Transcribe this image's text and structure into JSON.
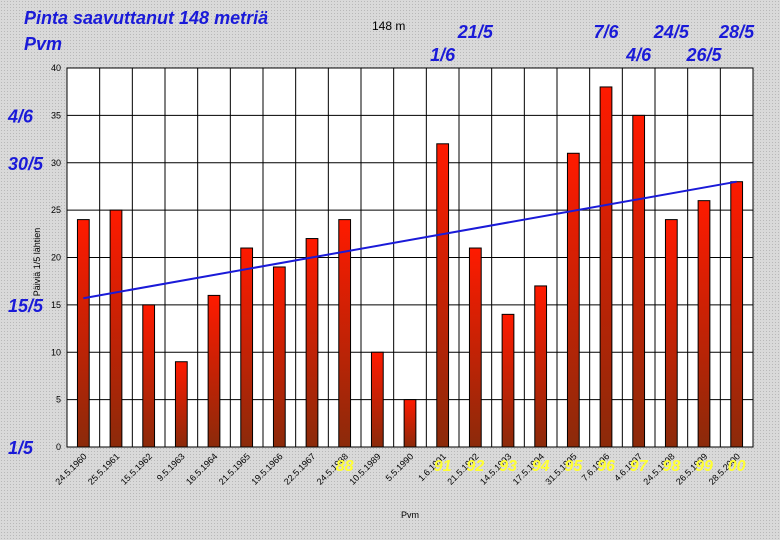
{
  "title_line1": "Pinta saavuttanut 148 metriä",
  "title_line2": "Pvm",
  "subtitle": "148 m",
  "chart_data": {
    "type": "bar",
    "xlabel": "Pvm",
    "ylabel": "Päiviä 1/5 lähtien",
    "ylim": [
      0,
      40
    ],
    "yticks": [
      0,
      5,
      10,
      15,
      20,
      25,
      30,
      35,
      40
    ],
    "grid": true,
    "categories": [
      "24.5.1960",
      "25.5.1961",
      "15.5.1962",
      "9.5.1963",
      "16.5.1964",
      "21.5.1965",
      "19.5.1966",
      "22.5.1967",
      "24.5.1988",
      "10.5.1989",
      "5.5.1990",
      "1.6.1991",
      "21.5.1992",
      "14.5.1993",
      "17.5.1994",
      "31.5.1995",
      "7.6.1996",
      "4.6.1997",
      "24.5.1998",
      "26.5.1999",
      "28.5.2000"
    ],
    "values": [
      24,
      25,
      15,
      9,
      16,
      21,
      19,
      22,
      24,
      10,
      5,
      32,
      21,
      14,
      17,
      31,
      38,
      35,
      24,
      26,
      28
    ],
    "trendline": {
      "start": 15.7,
      "end": 28.0,
      "color": "#1a1ad8"
    },
    "bar_color_top": "#ff1a00",
    "bar_color_bottom": "#8b2a0a",
    "left_date_labels": [
      {
        "text": "4/6",
        "y": 35
      },
      {
        "text": "30/5",
        "y": 30
      },
      {
        "text": "15/5",
        "y": 15
      },
      {
        "text": "1/5",
        "y": 0
      }
    ],
    "bar_date_labels": [
      {
        "text": "1/6",
        "index": 11,
        "row": 2
      },
      {
        "text": "21/5",
        "index": 12,
        "row": 1
      },
      {
        "text": "7/6",
        "index": 16,
        "row": 1
      },
      {
        "text": "4/6",
        "index": 17,
        "row": 2
      },
      {
        "text": "24/5",
        "index": 18,
        "row": 1
      },
      {
        "text": "26/5",
        "index": 19,
        "row": 2
      },
      {
        "text": "28/5",
        "index": 20,
        "row": 1
      }
    ],
    "year_labels": [
      {
        "text": "88",
        "index": 8
      },
      {
        "text": "91",
        "index": 11
      },
      {
        "text": "92",
        "index": 12
      },
      {
        "text": "93",
        "index": 13
      },
      {
        "text": "94",
        "index": 14
      },
      {
        "text": "95",
        "index": 15
      },
      {
        "text": "96",
        "index": 16
      },
      {
        "text": "97",
        "index": 17
      },
      {
        "text": "98",
        "index": 18
      },
      {
        "text": "99",
        "index": 19
      },
      {
        "text": "00",
        "index": 20
      }
    ]
  }
}
